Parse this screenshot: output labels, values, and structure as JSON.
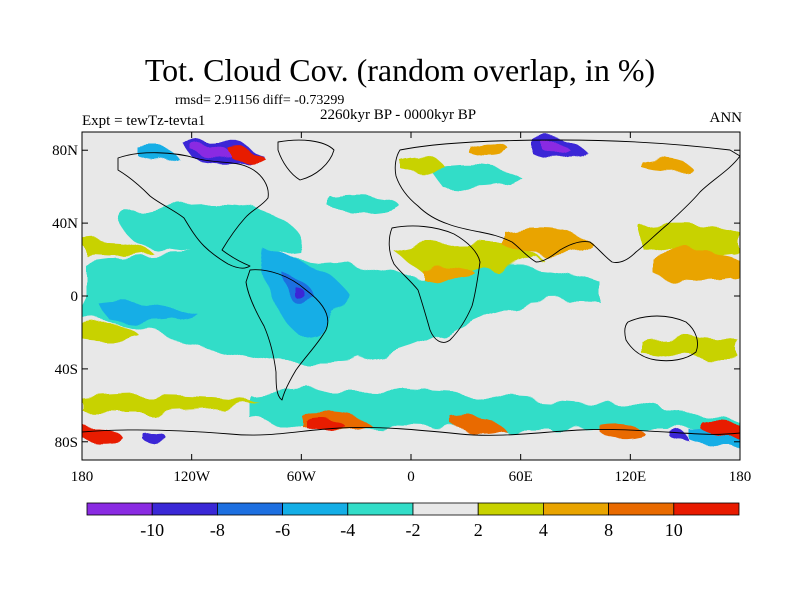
{
  "header": {
    "title": "Tot. Cloud Cov. (random overlap, in %)",
    "stats": "rmsd= 2.91156 diff= -0.73299",
    "period": "2260kyr BP - 0000kyr BP",
    "experiment": "Expt = tewTz-tevta1",
    "season": "ANN"
  },
  "map": {
    "projection": "cylindrical-equidistant",
    "lon_range": [
      -180,
      180
    ],
    "lat_range": [
      -90,
      90
    ],
    "background_color": "#e8e8e8",
    "xtick_labels": [
      "180",
      "120W",
      "60W",
      "0",
      "60E",
      "120E",
      "180"
    ],
    "ytick_labels": [
      "80N",
      "40N",
      "0",
      "40S",
      "80S"
    ]
  },
  "colorbar": {
    "labels": [
      "-10",
      "-8",
      "-6",
      "-4",
      "-2",
      "2",
      "4",
      "8",
      "10"
    ],
    "colors": [
      "#8a2be2",
      "#3a28d6",
      "#1d6fe0",
      "#14aee6",
      "#32ddc8",
      "#e8e8e8",
      "#c8d200",
      "#e9a400",
      "#e96a00",
      "#e81a00"
    ]
  }
}
